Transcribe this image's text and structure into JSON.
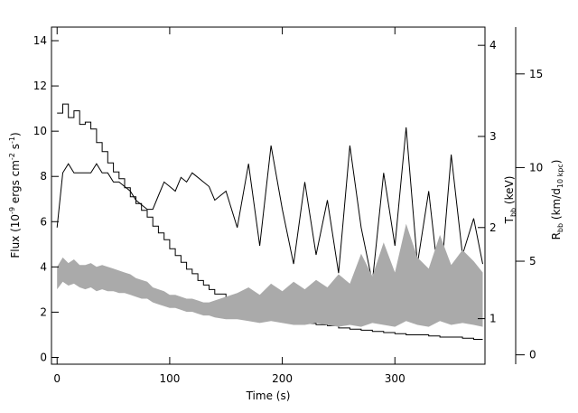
{
  "chart_data": {
    "type": "line",
    "xlabel": "Time (s)",
    "xlim": [
      -5,
      380
    ],
    "xticks": [
      0,
      100,
      200,
      300
    ],
    "left_axis": {
      "label": "Flux (10⁻⁹ ergs cm⁻² s⁻¹)",
      "label_parts": [
        "Flux (10",
        "-9",
        " ergs cm",
        "-2",
        " s",
        "-1",
        ")"
      ],
      "ylim": [
        -0.3,
        14.6
      ],
      "ticks": [
        0,
        2,
        4,
        6,
        8,
        10,
        12,
        14
      ]
    },
    "t_axis": {
      "label": "T_bb (keV)",
      "label_parts": [
        "T",
        "bb",
        " (keV)"
      ],
      "ylim": [
        0.5,
        4.2
      ],
      "ticks": [
        1,
        2,
        3,
        4
      ]
    },
    "r_axis": {
      "label": "R_bb (km/d_10 kpc)",
      "label_parts": [
        "R",
        "bb",
        " (km/d",
        "10 kpc",
        ")"
      ],
      "ylim": [
        -0.5,
        17.5
      ],
      "ticks": [
        0,
        5,
        10,
        15
      ]
    },
    "series": [
      {
        "color": "#000000",
        "style": "histogram",
        "axis": "flux",
        "x": [
          0,
          5,
          10,
          15,
          20,
          25,
          30,
          35,
          40,
          45,
          50,
          55,
          60,
          65,
          70,
          75,
          80,
          85,
          90,
          95,
          100,
          105,
          110,
          115,
          120,
          125,
          130,
          135,
          140,
          150,
          160,
          170,
          180,
          190,
          200,
          210,
          220,
          230,
          240,
          250,
          260,
          270,
          280,
          290,
          300,
          310,
          320,
          330,
          340,
          350,
          360,
          370,
          378
        ],
        "y": [
          10.8,
          11.2,
          10.6,
          10.9,
          10.3,
          10.4,
          10.1,
          9.5,
          9.1,
          8.6,
          8.2,
          7.9,
          7.5,
          7.1,
          6.8,
          6.5,
          6.2,
          5.8,
          5.5,
          5.2,
          4.8,
          4.5,
          4.2,
          3.9,
          3.7,
          3.4,
          3.2,
          3.0,
          2.8,
          2.5,
          2.3,
          2.1,
          1.9,
          1.8,
          1.7,
          1.6,
          1.5,
          1.45,
          1.4,
          1.3,
          1.25,
          1.2,
          1.15,
          1.1,
          1.05,
          1.0,
          1.0,
          0.95,
          0.9,
          0.9,
          0.85,
          0.8,
          0.8
        ]
      },
      {
        "color": "#000000",
        "style": "line",
        "axis": "temperature",
        "x": [
          0,
          5,
          10,
          15,
          20,
          25,
          30,
          35,
          40,
          45,
          50,
          55,
          60,
          65,
          70,
          75,
          80,
          85,
          90,
          95,
          100,
          105,
          110,
          115,
          120,
          125,
          130,
          135,
          140,
          150,
          160,
          170,
          180,
          190,
          200,
          210,
          220,
          230,
          240,
          250,
          260,
          270,
          280,
          290,
          300,
          310,
          320,
          330,
          340,
          350,
          360,
          370,
          378
        ],
        "y": [
          2.0,
          2.6,
          2.7,
          2.6,
          2.6,
          2.6,
          2.6,
          2.7,
          2.6,
          2.6,
          2.5,
          2.5,
          2.45,
          2.4,
          2.3,
          2.25,
          2.2,
          2.2,
          2.35,
          2.5,
          2.45,
          2.4,
          2.55,
          2.5,
          2.6,
          2.55,
          2.5,
          2.45,
          2.3,
          2.4,
          2.0,
          2.7,
          1.8,
          2.9,
          2.2,
          1.6,
          2.5,
          1.7,
          2.3,
          1.5,
          2.9,
          2.0,
          1.4,
          2.6,
          1.8,
          3.1,
          1.6,
          2.4,
          1.3,
          2.8,
          1.7,
          2.1,
          1.6
        ]
      },
      {
        "color": "#aaaaaa",
        "style": "band",
        "axis": "radius",
        "x": [
          0,
          5,
          10,
          15,
          20,
          25,
          30,
          35,
          40,
          45,
          50,
          55,
          60,
          65,
          70,
          75,
          80,
          85,
          90,
          95,
          100,
          105,
          110,
          115,
          120,
          125,
          130,
          135,
          140,
          150,
          160,
          170,
          180,
          190,
          200,
          210,
          220,
          230,
          240,
          250,
          260,
          270,
          280,
          290,
          300,
          310,
          320,
          330,
          340,
          350,
          360,
          370,
          378
        ],
        "lower": [
          3.5,
          3.9,
          3.7,
          3.8,
          3.6,
          3.5,
          3.6,
          3.4,
          3.5,
          3.4,
          3.4,
          3.3,
          3.3,
          3.2,
          3.1,
          3.0,
          3.0,
          2.8,
          2.7,
          2.6,
          2.5,
          2.5,
          2.4,
          2.3,
          2.3,
          2.2,
          2.1,
          2.1,
          2.0,
          1.9,
          1.9,
          1.8,
          1.7,
          1.8,
          1.7,
          1.6,
          1.6,
          1.7,
          1.6,
          1.5,
          1.6,
          1.5,
          1.7,
          1.6,
          1.5,
          1.8,
          1.6,
          1.5,
          1.8,
          1.6,
          1.7,
          1.6,
          1.5
        ],
        "upper": [
          4.7,
          5.2,
          4.9,
          5.1,
          4.8,
          4.8,
          4.9,
          4.7,
          4.8,
          4.7,
          4.6,
          4.5,
          4.4,
          4.3,
          4.1,
          4.0,
          3.9,
          3.6,
          3.5,
          3.4,
          3.2,
          3.2,
          3.1,
          3.0,
          3.0,
          2.9,
          2.8,
          2.8,
          2.9,
          3.1,
          3.3,
          3.6,
          3.2,
          3.8,
          3.4,
          3.9,
          3.5,
          4.0,
          3.6,
          4.3,
          3.8,
          5.4,
          4.2,
          6.0,
          4.4,
          7.0,
          5.2,
          4.6,
          6.4,
          4.8,
          5.6,
          5.0,
          4.4
        ]
      }
    ],
    "grid": false,
    "legend": "none"
  }
}
